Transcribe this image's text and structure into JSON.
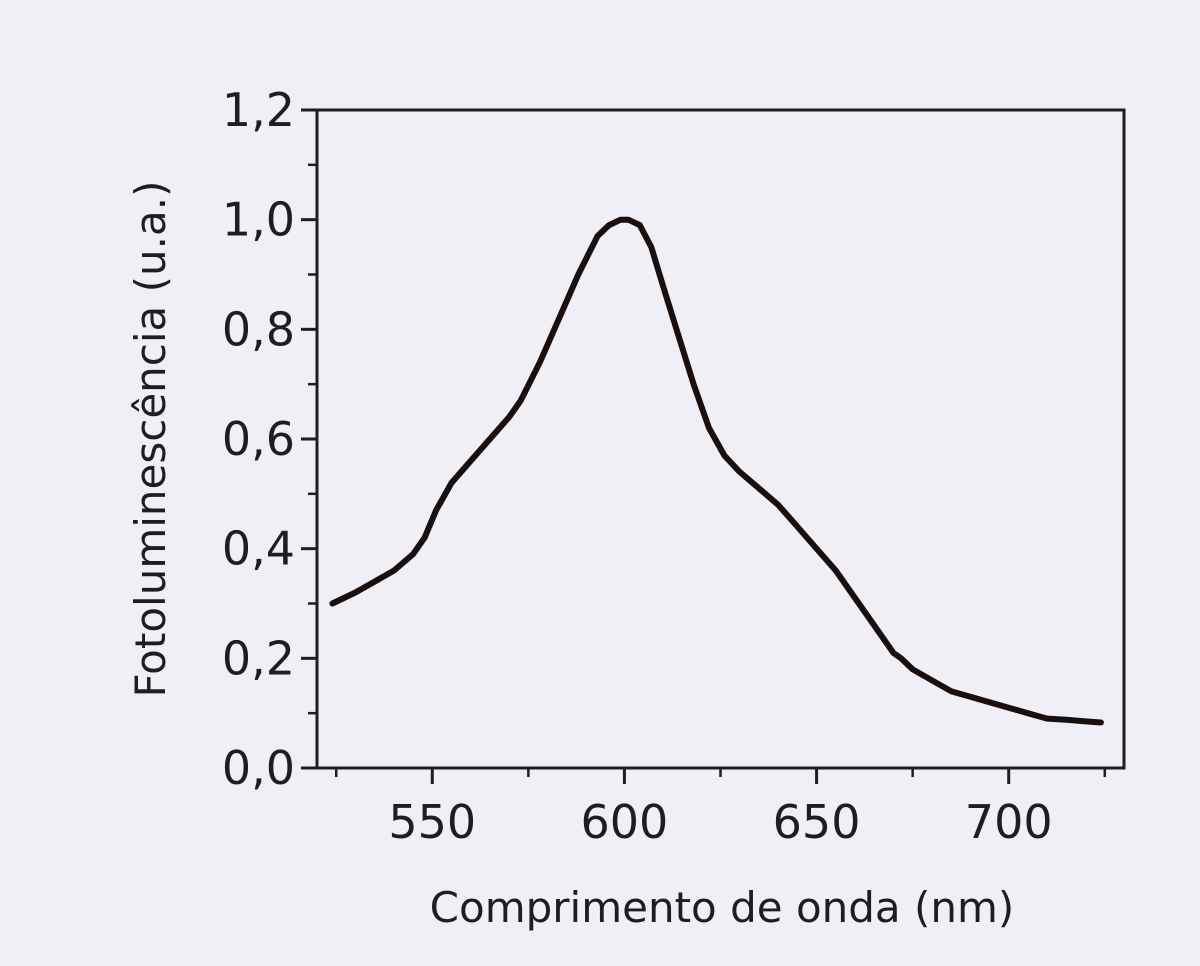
{
  "chart_data": {
    "type": "line",
    "title": "",
    "xlabel": "Comprimento de onda (nm)",
    "ylabel": "Fotoluminescência (u.a.)",
    "xlim": [
      520,
      730
    ],
    "ylim": [
      0.0,
      1.2
    ],
    "x_ticks": [
      550,
      600,
      650,
      700
    ],
    "x_tick_labels": [
      "550",
      "600",
      "650",
      "700"
    ],
    "y_ticks": [
      0.0,
      0.2,
      0.4,
      0.6,
      0.8,
      1.0,
      1.2
    ],
    "y_tick_labels": [
      "0,0",
      "0,2",
      "0,4",
      "0,6",
      "0,8",
      "1,0",
      "1,2"
    ],
    "grid": false,
    "colors": {
      "line": "#1a0f0f",
      "axes": "#1e1e1e",
      "background": "#f0eff5"
    },
    "series": [
      {
        "x": [
          524,
          530,
          535,
          540,
          545,
          548,
          551,
          555,
          560,
          565,
          570,
          573,
          578,
          583,
          588,
          593,
          596,
          599,
          601,
          604,
          607,
          610,
          614,
          618,
          622,
          626,
          630,
          635,
          640,
          645,
          650,
          655,
          660,
          665,
          670,
          672,
          675,
          680,
          685,
          690,
          695,
          700,
          705,
          710,
          715,
          720,
          724
        ],
        "y": [
          0.3,
          0.32,
          0.34,
          0.36,
          0.39,
          0.42,
          0.47,
          0.52,
          0.56,
          0.6,
          0.64,
          0.67,
          0.74,
          0.82,
          0.9,
          0.97,
          0.99,
          1.0,
          1.0,
          0.99,
          0.95,
          0.88,
          0.79,
          0.7,
          0.62,
          0.57,
          0.54,
          0.51,
          0.48,
          0.44,
          0.4,
          0.36,
          0.31,
          0.26,
          0.21,
          0.2,
          0.18,
          0.16,
          0.14,
          0.13,
          0.12,
          0.11,
          0.1,
          0.09,
          0.088,
          0.085,
          0.083
        ]
      }
    ]
  }
}
